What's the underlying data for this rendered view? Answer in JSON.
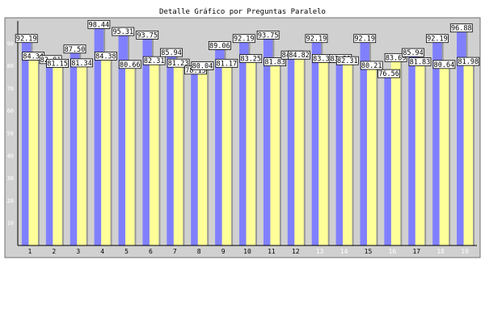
{
  "chart_data": {
    "type": "bar",
    "title": "Detalle Gráfico por Preguntas Paralelo",
    "xlabel": "",
    "ylabel": "",
    "ylim": [
      0,
      100
    ],
    "yticks": [
      10,
      20,
      30,
      40,
      50,
      60,
      70,
      80,
      90
    ],
    "grid": false,
    "legend": "none",
    "categories": [
      "1",
      "2",
      "3",
      "4",
      "5",
      "6",
      "7",
      "8",
      "9",
      "10",
      "11",
      "12",
      "13",
      "14",
      "15",
      "16",
      "17",
      "18",
      "19"
    ],
    "category_label_colors": [
      "#000000",
      "#000000",
      "#000000",
      "#000000",
      "#000000",
      "#000000",
      "#000000",
      "#000000",
      "#000000",
      "#000000",
      "#000000",
      "#000000",
      "#ffffff",
      "#ffffff",
      "#000000",
      "#ffffff",
      "#000000",
      "#ffffff",
      "#ffffff"
    ],
    "series": [
      {
        "color": "#8080ff",
        "values": [
          92.19,
          82.81,
          87.5,
          98.44,
          95.31,
          93.75,
          85.94,
          78.13,
          89.06,
          92.19,
          93.75,
          84.82,
          92.19,
          83.31,
          92.19,
          76.56,
          85.94,
          92.19,
          96.88
        ]
      },
      {
        "color": "#ffff99",
        "values": [
          84.34,
          81.15,
          81.34,
          84.38,
          80.66,
          82.31,
          81.23,
          80.04,
          81.17,
          83.25,
          81.83,
          84.82,
          83.31,
          82.31,
          80.21,
          83.69,
          81.83,
          80.64,
          81.98
        ]
      }
    ],
    "colors": {
      "plot_bg": "#d0d0d0",
      "frame_bg": "#d0d0d0"
    }
  }
}
